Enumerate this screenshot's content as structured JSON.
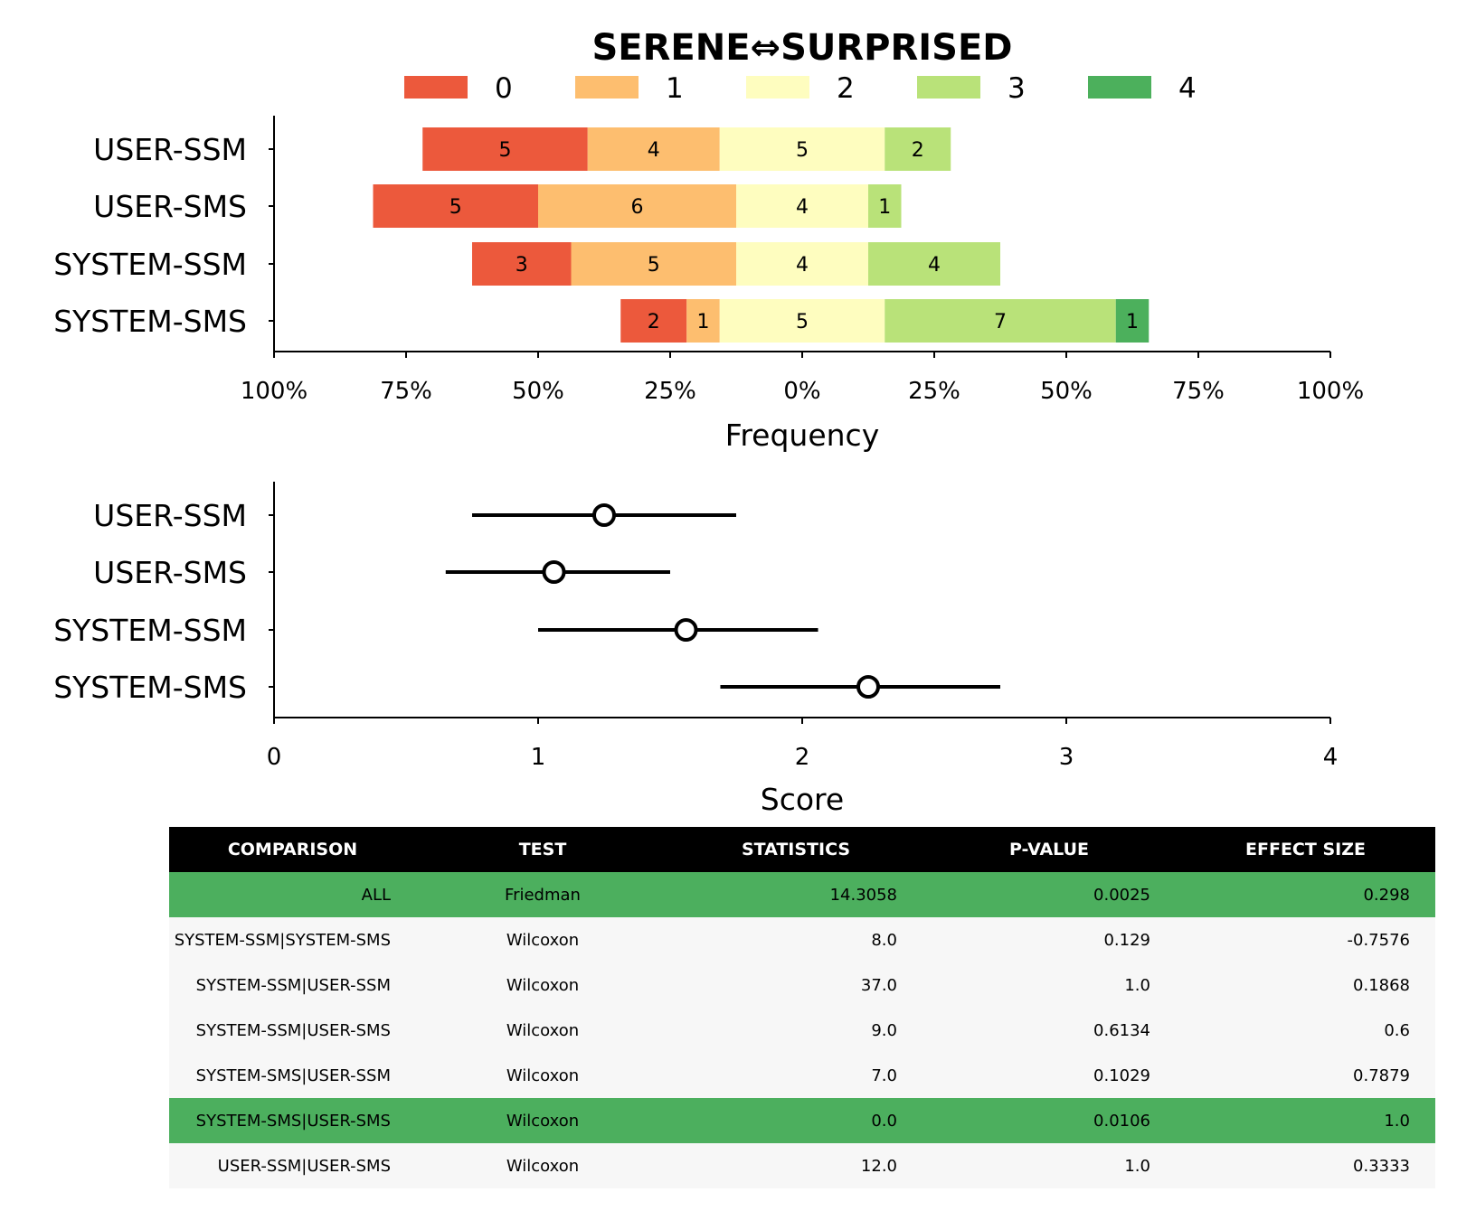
{
  "chart_data": [
    {
      "type": "bar",
      "subtype": "diverging-stacked-horizontal",
      "title": "SERENE⇔SURPRISED",
      "xlabel": "Frequency",
      "ylabel": "",
      "xlim": [
        -100,
        100
      ],
      "xticks": [
        "100%",
        "75%",
        "50%",
        "25%",
        "0%",
        "25%",
        "50%",
        "75%",
        "100%"
      ],
      "legend_position": "top-center",
      "legend": [
        "0",
        "1",
        "2",
        "3",
        "4"
      ],
      "colors": [
        "#ec593c",
        "#fdbe6f",
        "#fefdbf",
        "#b9e279",
        "#4cb05c"
      ],
      "categories": [
        "USER-SSM",
        "USER-SMS",
        "SYSTEM-SSM",
        "SYSTEM-SMS"
      ],
      "series": [
        {
          "name": "0",
          "values": [
            5,
            5,
            3,
            2
          ]
        },
        {
          "name": "1",
          "values": [
            4,
            6,
            5,
            1
          ]
        },
        {
          "name": "2",
          "values": [
            5,
            4,
            4,
            5
          ]
        },
        {
          "name": "3",
          "values": [
            2,
            1,
            4,
            7
          ]
        },
        {
          "name": "4",
          "values": [
            0,
            0,
            0,
            1
          ]
        }
      ],
      "grid": false
    },
    {
      "type": "scatter",
      "subtype": "point-with-interval",
      "xlabel": "Score",
      "ylabel": "",
      "xlim": [
        0,
        4
      ],
      "xticks": [
        "0",
        "1",
        "2",
        "3",
        "4"
      ],
      "categories": [
        "USER-SSM",
        "USER-SMS",
        "SYSTEM-SSM",
        "SYSTEM-SMS"
      ],
      "mean": [
        1.25,
        1.06,
        1.56,
        2.25
      ],
      "ci_low": [
        0.75,
        0.65,
        1.0,
        1.69
      ],
      "ci_high": [
        1.75,
        1.5,
        2.06,
        2.75
      ],
      "grid": false
    }
  ],
  "table": {
    "headers": [
      "COMPARISON",
      "TEST",
      "STATISTICS",
      "P-VALUE",
      "EFFECT SIZE"
    ],
    "rows": [
      {
        "comparison": "ALL",
        "test": "Friedman",
        "statistics": "14.3058",
        "p_value": "0.0025",
        "effect_size": "0.298",
        "highlight": true
      },
      {
        "comparison": "SYSTEM-SSM|SYSTEM-SMS",
        "test": "Wilcoxon",
        "statistics": "8.0",
        "p_value": "0.129",
        "effect_size": "-0.7576",
        "highlight": false
      },
      {
        "comparison": "SYSTEM-SSM|USER-SSM",
        "test": "Wilcoxon",
        "statistics": "37.0",
        "p_value": "1.0",
        "effect_size": "0.1868",
        "highlight": false
      },
      {
        "comparison": "SYSTEM-SSM|USER-SMS",
        "test": "Wilcoxon",
        "statistics": "9.0",
        "p_value": "0.6134",
        "effect_size": "0.6",
        "highlight": false
      },
      {
        "comparison": "SYSTEM-SMS|USER-SSM",
        "test": "Wilcoxon",
        "statistics": "7.0",
        "p_value": "0.1029",
        "effect_size": "0.7879",
        "highlight": false
      },
      {
        "comparison": "SYSTEM-SMS|USER-SMS",
        "test": "Wilcoxon",
        "statistics": "0.0",
        "p_value": "0.0106",
        "effect_size": "1.0",
        "highlight": true
      },
      {
        "comparison": "USER-SSM|USER-SMS",
        "test": "Wilcoxon",
        "statistics": "12.0",
        "p_value": "1.0",
        "effect_size": "0.3333",
        "highlight": false
      }
    ],
    "highlight_color": "#4caf5e",
    "header_color": "#000000"
  }
}
